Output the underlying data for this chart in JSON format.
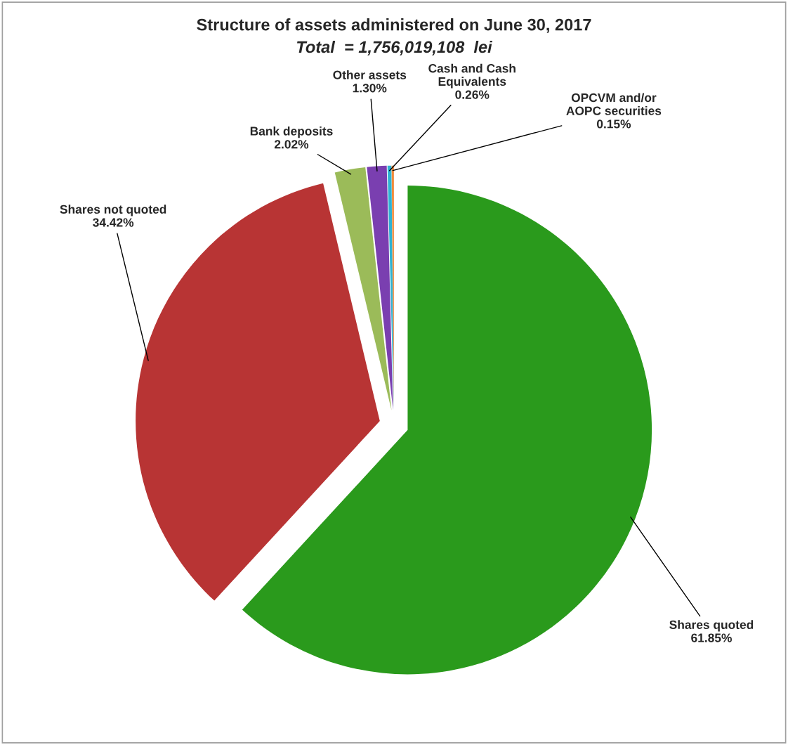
{
  "chart_data": {
    "type": "pie",
    "title": "Structure of assets administered on June 30, 2017",
    "subtitle": "Total  = 1,756,019,108  lei",
    "categories": [
      "Shares quoted",
      "Shares not quoted",
      "Bank deposits",
      "Other assets",
      "Cash and Cash\nEquivalents",
      "OPCVM and/or\nAOPC securities"
    ],
    "values": [
      61.85,
      34.42,
      2.02,
      1.3,
      0.26,
      0.15
    ],
    "value_labels": [
      "61.85%",
      "34.42%",
      "2.02%",
      "1.30%",
      "0.26%",
      "0.15%"
    ],
    "colors": [
      "#2a9a1c",
      "#b83434",
      "#9bbb59",
      "#7a3fb0",
      "#2fb3d3",
      "#f08a3c"
    ],
    "legend": false
  }
}
